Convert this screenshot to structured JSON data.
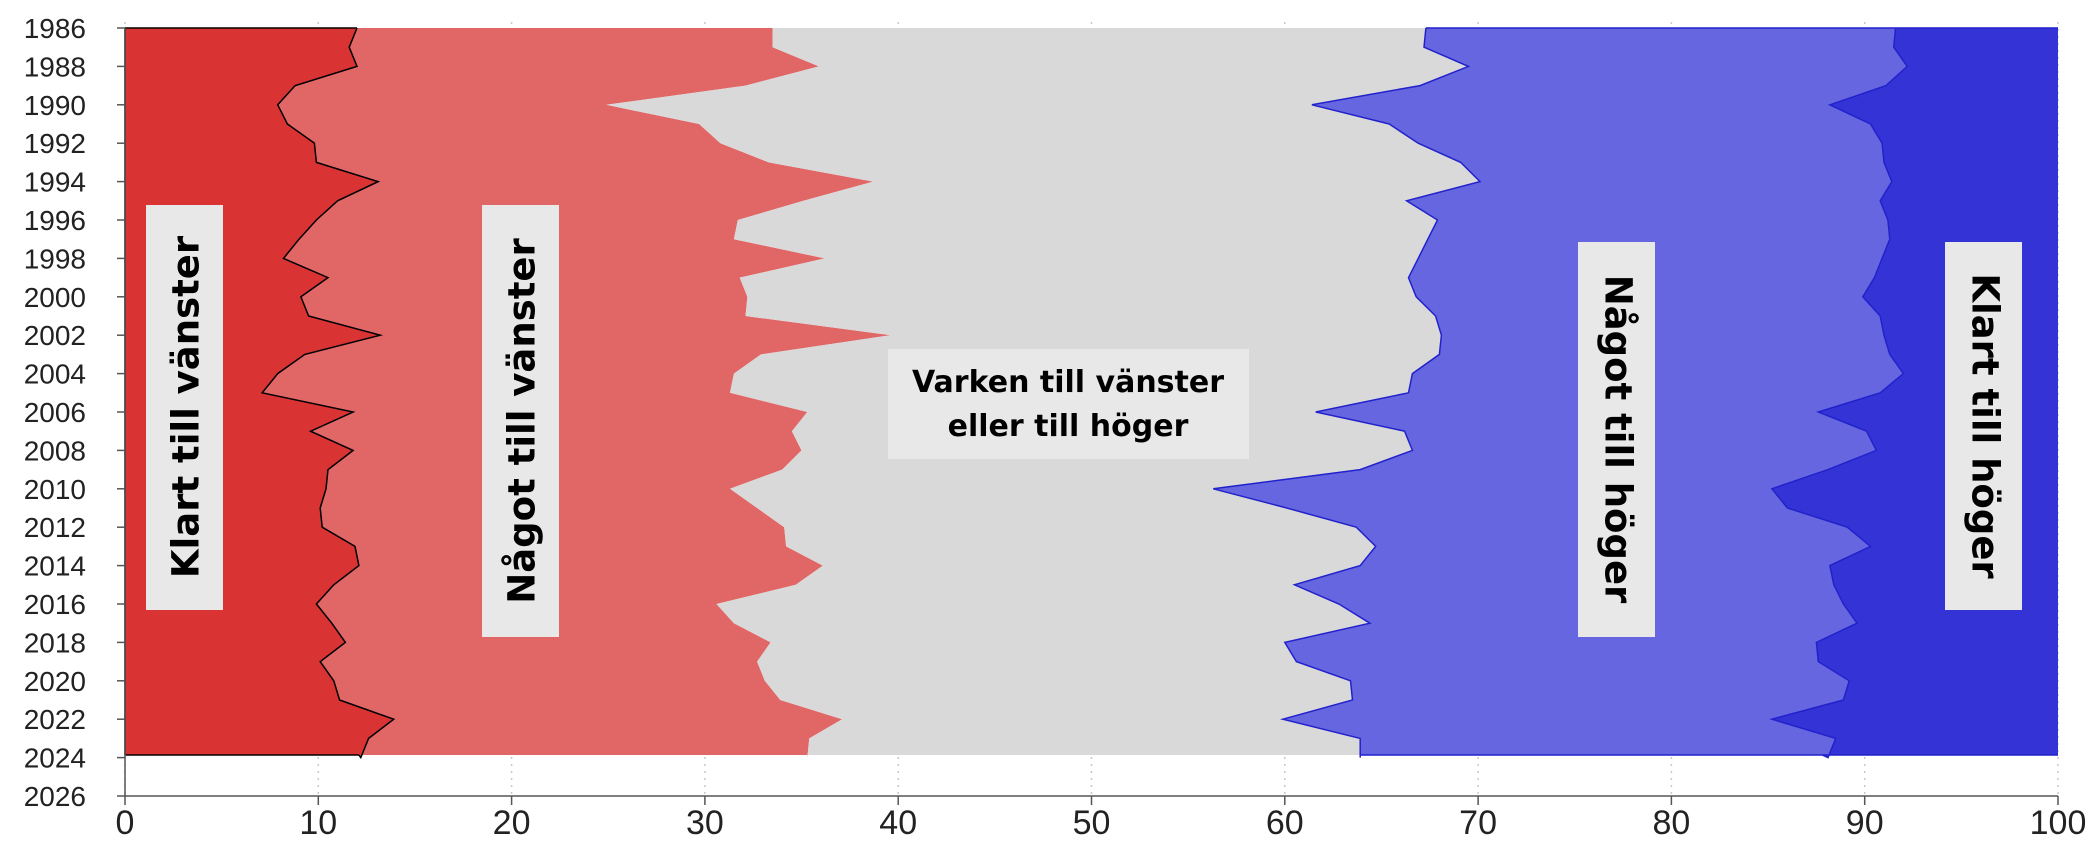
{
  "chart_data": {
    "type": "area",
    "orientation": "horizontal-stacked",
    "y_axis": {
      "min": 1986,
      "max": 2026,
      "ticks": [
        1986,
        1988,
        1990,
        1992,
        1994,
        1996,
        1998,
        2000,
        2002,
        2004,
        2006,
        2008,
        2010,
        2012,
        2014,
        2016,
        2018,
        2020,
        2022,
        2024,
        2026
      ]
    },
    "x_axis": {
      "min": 0,
      "max": 100,
      "ticks": [
        0,
        10,
        20,
        30,
        40,
        50,
        60,
        70,
        80,
        90,
        100
      ]
    },
    "grid": "vertical dotted",
    "years": [
      1986,
      1987,
      1988,
      1989,
      1990,
      1991,
      1992,
      1993,
      1994,
      1995,
      1996,
      1997,
      1998,
      1999,
      2000,
      2001,
      2002,
      2003,
      2004,
      2005,
      2006,
      2007,
      2008,
      2009,
      2010,
      2011,
      2012,
      2013,
      2014,
      2015,
      2016,
      2017,
      2018,
      2019,
      2020,
      2021,
      2022,
      2023,
      2024,
      2025
    ],
    "boundaries": {
      "b1": [
        12.0,
        11.6,
        12.0,
        8.8,
        7.9,
        8.4,
        9.8,
        9.9,
        13.1,
        11.0,
        9.9,
        9.0,
        8.2,
        10.5,
        9.1,
        9.5,
        13.2,
        9.3,
        7.9,
        7.1,
        11.8,
        9.6,
        11.8,
        10.5,
        10.4,
        10.1,
        10.2,
        11.9,
        12.1,
        10.8,
        9.9,
        10.7,
        11.4,
        10.1,
        10.8,
        11.1,
        13.9,
        12.6,
        12.2,
        12.1
      ],
      "b2": [
        33.5,
        33.5,
        35.9,
        32.1,
        24.9,
        29.7,
        30.8,
        33.3,
        38.7,
        35.1,
        31.7,
        31.5,
        36.2,
        31.8,
        32.2,
        32.1,
        39.6,
        32.9,
        31.5,
        31.3,
        35.3,
        34.5,
        35.0,
        34.0,
        31.3,
        32.7,
        34.1,
        34.2,
        36.1,
        34.7,
        30.6,
        31.5,
        33.4,
        32.7,
        33.1,
        33.9,
        37.1,
        35.4,
        35.3,
        35.3
      ],
      "b3": [
        67.3,
        67.2,
        69.5,
        67.0,
        61.4,
        65.4,
        66.9,
        69.1,
        70.1,
        66.3,
        67.9,
        67.4,
        66.9,
        66.4,
        66.8,
        67.8,
        68.1,
        68.0,
        66.6,
        66.4,
        61.6,
        66.2,
        66.6,
        63.9,
        56.3,
        60.1,
        63.7,
        64.7,
        63.9,
        60.5,
        62.8,
        64.4,
        60.0,
        60.6,
        63.4,
        63.5,
        59.9,
        63.9,
        63.9,
        63.9
      ],
      "b4": [
        91.6,
        91.5,
        92.2,
        91.1,
        88.2,
        90.3,
        90.9,
        91.0,
        91.4,
        90.8,
        91.2,
        91.3,
        90.9,
        90.5,
        89.9,
        90.8,
        91.0,
        91.3,
        92.0,
        90.8,
        87.6,
        90.1,
        90.6,
        88.1,
        85.2,
        86.0,
        89.1,
        90.3,
        88.2,
        88.4,
        88.9,
        89.6,
        87.5,
        87.6,
        89.2,
        88.9,
        85.2,
        88.5,
        88.1,
        87.8
      ]
    },
    "series": [
      {
        "label": "Klart till vänster",
        "color": "#d93333",
        "edge": "#000000"
      },
      {
        "label": "Något till vänster",
        "color": "#e16767",
        "edge": "none"
      },
      {
        "label": "Varken till vänster eller till höger",
        "color": "#d9d9d9",
        "edge": "none"
      },
      {
        "label": "Något till höger",
        "color": "#6666e0",
        "edge": "#2222cc"
      },
      {
        "label": "Klart till höger",
        "color": "#3333d6",
        "edge": "#2222cc"
      }
    ]
  }
}
